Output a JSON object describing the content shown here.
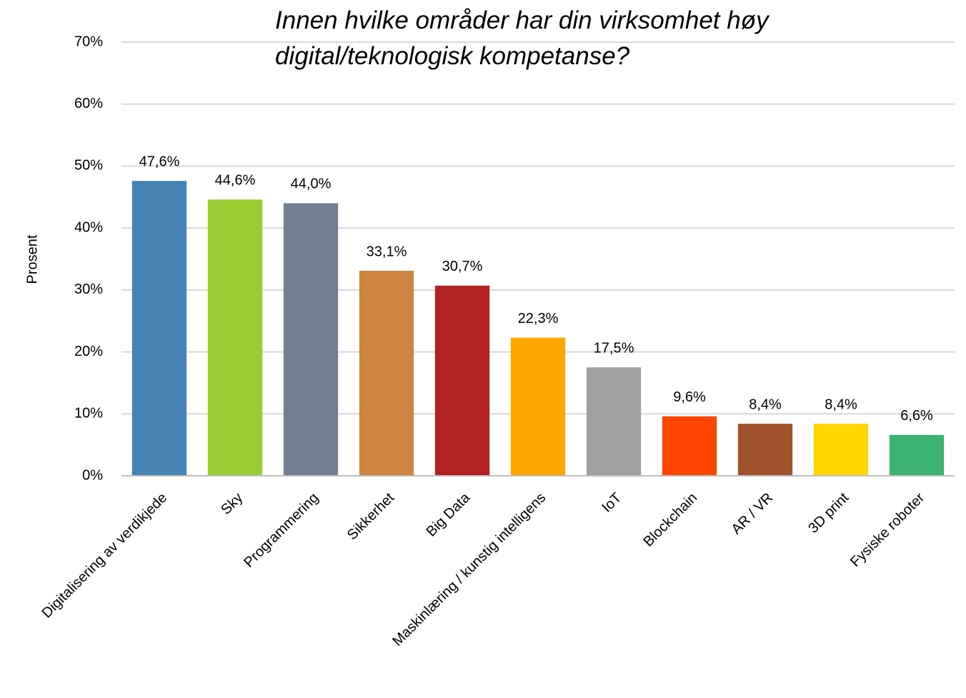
{
  "chart_data": {
    "type": "bar",
    "title": "Innen hvilke områder har din virksomhet høy digital/teknologisk kompetanse?",
    "y_label": "Prosent",
    "categories": [
      "Digitalisering av verdikjede",
      "Sky",
      "Programmering",
      "Sikkerhet",
      "Big Data",
      "Maskinlæring / kunstig intelligens",
      "IoT",
      "Blockchain",
      "AR / VR",
      "3D print",
      "Fysiske roboter"
    ],
    "values": [
      47.6,
      44.6,
      44.0,
      33.1,
      30.7,
      22.3,
      17.5,
      9.6,
      8.4,
      8.4,
      6.6
    ],
    "value_labels": [
      "47,6%",
      "44,6%",
      "44,0%",
      "33,1%",
      "30,7%",
      "22,3%",
      "17,5%",
      "9,6%",
      "8,4%",
      "8,4%",
      "6,6%"
    ],
    "colors": [
      "#4682b4",
      "#9acd32",
      "#708090",
      "#cd853f",
      "#b22222",
      "#ffa500",
      "#a0a0a0",
      "#ff4500",
      "#a0522d",
      "#ffd700",
      "#3cb371"
    ],
    "ylim": [
      0,
      70
    ],
    "yticks": [
      {
        "value": 0,
        "label": "0%"
      },
      {
        "value": 10,
        "label": "10%"
      },
      {
        "value": 20,
        "label": "20%"
      },
      {
        "value": 30,
        "label": "30%"
      },
      {
        "value": 40,
        "label": "40%"
      },
      {
        "value": 50,
        "label": "50%"
      },
      {
        "value": 60,
        "label": "60%"
      },
      {
        "value": 70,
        "label": "70%"
      }
    ],
    "grid": true
  }
}
